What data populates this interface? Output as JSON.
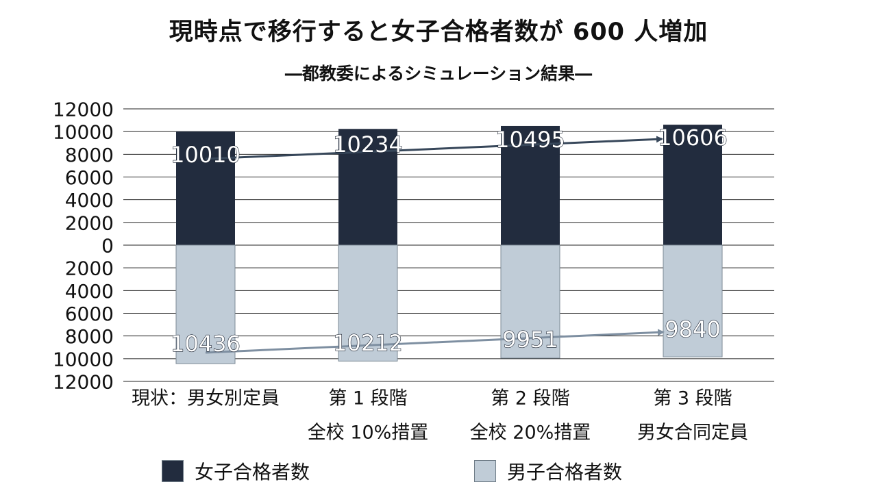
{
  "title": "現時点で移行すると女子合格者数が 600 人増加",
  "subtitle": "―都教委によるシミュレーション結果―",
  "colors": {
    "female": "#222c3e",
    "male": "#c0ccd7",
    "female_arrow": "#37475a",
    "male_arrow": "#7e8fa1",
    "grid": "#222222"
  },
  "chart_data": {
    "type": "bar",
    "subtype": "diverging-stacked",
    "categories": [
      [
        "現状：男女別定員"
      ],
      [
        "第 1 段階",
        "全校 10%措置"
      ],
      [
        "第 2 段階",
        "全校 20%措置"
      ],
      [
        "第 3 段階",
        "男女合同定員"
      ]
    ],
    "series": [
      {
        "name": "女子合格者数",
        "values": [
          10010,
          10234,
          10495,
          10606
        ],
        "direction": "up"
      },
      {
        "name": "男子合格者数",
        "values": [
          10436,
          10212,
          9951,
          9840
        ],
        "direction": "down"
      }
    ],
    "yticks": [
      "12000",
      "10000",
      "8000",
      "6000",
      "4000",
      "2000",
      "0",
      "2000",
      "4000",
      "6000",
      "8000",
      "10000",
      "12000"
    ],
    "ylim": [
      -12000,
      12000
    ],
    "grid": true,
    "legend_position": "bottom",
    "trend_arrows": true
  }
}
